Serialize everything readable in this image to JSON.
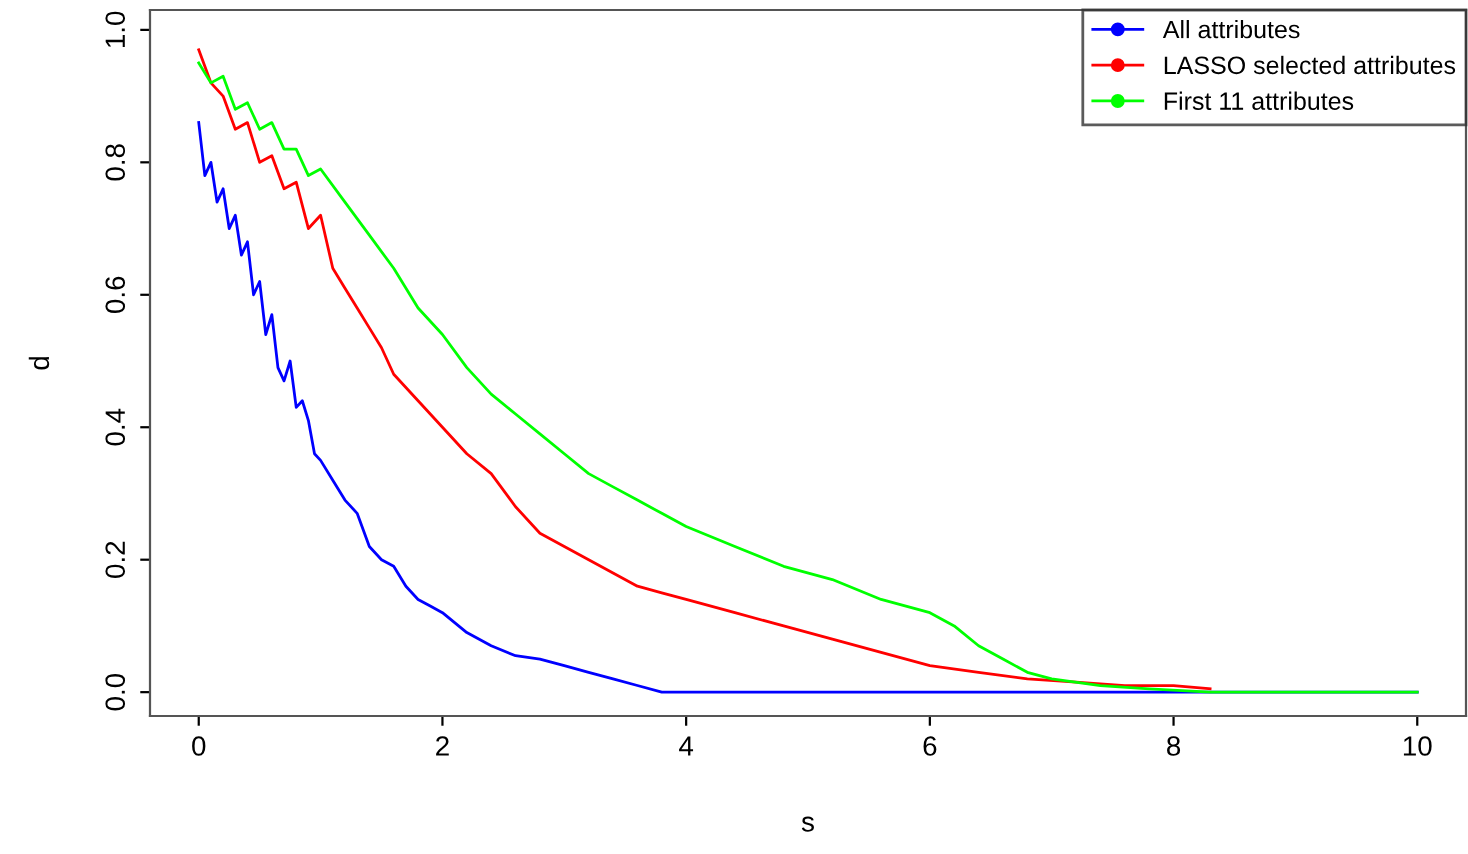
{
  "chart_data": {
    "type": "line",
    "xlabel": "s",
    "ylabel": "d",
    "xlim": [
      -0.4,
      10.4
    ],
    "ylim": [
      -0.036,
      1.03
    ],
    "xticks": [
      0,
      2,
      4,
      6,
      8,
      10
    ],
    "yticks": [
      {
        "value": 0,
        "label": "0.0"
      },
      {
        "value": 0.2,
        "label": "0.2"
      },
      {
        "value": 0.4,
        "label": "0.4"
      },
      {
        "value": 0.6,
        "label": "0.6"
      },
      {
        "value": 0.8,
        "label": "0.8"
      },
      {
        "value": 1.0,
        "label": "1.0"
      }
    ],
    "grid": false,
    "legend": "top right",
    "line_style": "solid",
    "series": [
      {
        "name": "All attributes",
        "color": "#0000ff",
        "x": [
          0,
          0.05,
          0.1,
          0.15,
          0.2,
          0.25,
          0.3,
          0.35,
          0.4,
          0.45,
          0.5,
          0.55,
          0.6,
          0.65,
          0.7,
          0.75,
          0.8,
          0.85,
          0.9,
          0.95,
          1.0,
          1.1,
          1.2,
          1.3,
          1.4,
          1.5,
          1.6,
          1.7,
          1.8,
          1.9,
          2.0,
          2.2,
          2.4,
          2.6,
          2.8,
          3.0,
          3.2,
          3.4,
          3.6,
          3.8,
          10
        ],
        "values": [
          0.86,
          0.78,
          0.8,
          0.74,
          0.76,
          0.7,
          0.72,
          0.66,
          0.68,
          0.6,
          0.62,
          0.54,
          0.57,
          0.49,
          0.47,
          0.5,
          0.43,
          0.44,
          0.41,
          0.36,
          0.35,
          0.32,
          0.29,
          0.27,
          0.22,
          0.2,
          0.19,
          0.16,
          0.14,
          0.13,
          0.12,
          0.09,
          0.07,
          0.055,
          0.05,
          0.04,
          0.03,
          0.02,
          0.01,
          0.0,
          0.0
        ]
      },
      {
        "name": "LASSO selected attributes",
        "color": "#ff0000",
        "x": [
          0,
          0.1,
          0.2,
          0.3,
          0.4,
          0.5,
          0.6,
          0.7,
          0.8,
          0.9,
          1.0,
          1.1,
          1.2,
          1.3,
          1.4,
          1.5,
          1.6,
          1.8,
          2.0,
          2.2,
          2.4,
          2.6,
          2.8,
          3.0,
          3.2,
          3.4,
          3.6,
          3.8,
          4.0,
          4.4,
          4.8,
          5.2,
          5.6,
          6.0,
          6.4,
          6.8,
          7.2,
          7.6,
          8.0,
          8.3
        ],
        "values": [
          0.97,
          0.92,
          0.9,
          0.85,
          0.86,
          0.8,
          0.81,
          0.76,
          0.77,
          0.7,
          0.72,
          0.64,
          0.61,
          0.58,
          0.55,
          0.52,
          0.48,
          0.44,
          0.4,
          0.36,
          0.33,
          0.28,
          0.24,
          0.22,
          0.2,
          0.18,
          0.16,
          0.15,
          0.14,
          0.12,
          0.1,
          0.08,
          0.06,
          0.04,
          0.03,
          0.02,
          0.015,
          0.01,
          0.01,
          0.005
        ]
      },
      {
        "name": "First 11 attributes",
        "color": "#00ff00",
        "x": [
          0,
          0.1,
          0.2,
          0.3,
          0.4,
          0.5,
          0.6,
          0.7,
          0.8,
          0.9,
          1.0,
          1.2,
          1.4,
          1.6,
          1.8,
          2.0,
          2.2,
          2.4,
          2.6,
          2.8,
          3.0,
          3.2,
          3.4,
          3.6,
          3.8,
          4.0,
          4.4,
          4.8,
          5.2,
          5.6,
          6.0,
          6.2,
          6.4,
          6.6,
          6.8,
          7.0,
          7.4,
          7.8,
          8.3,
          10
        ],
        "values": [
          0.95,
          0.92,
          0.93,
          0.88,
          0.89,
          0.85,
          0.86,
          0.82,
          0.82,
          0.78,
          0.79,
          0.74,
          0.69,
          0.64,
          0.58,
          0.54,
          0.49,
          0.45,
          0.42,
          0.39,
          0.36,
          0.33,
          0.31,
          0.29,
          0.27,
          0.25,
          0.22,
          0.19,
          0.17,
          0.14,
          0.12,
          0.1,
          0.07,
          0.05,
          0.03,
          0.02,
          0.01,
          0.005,
          0.0,
          0.0
        ]
      }
    ]
  }
}
